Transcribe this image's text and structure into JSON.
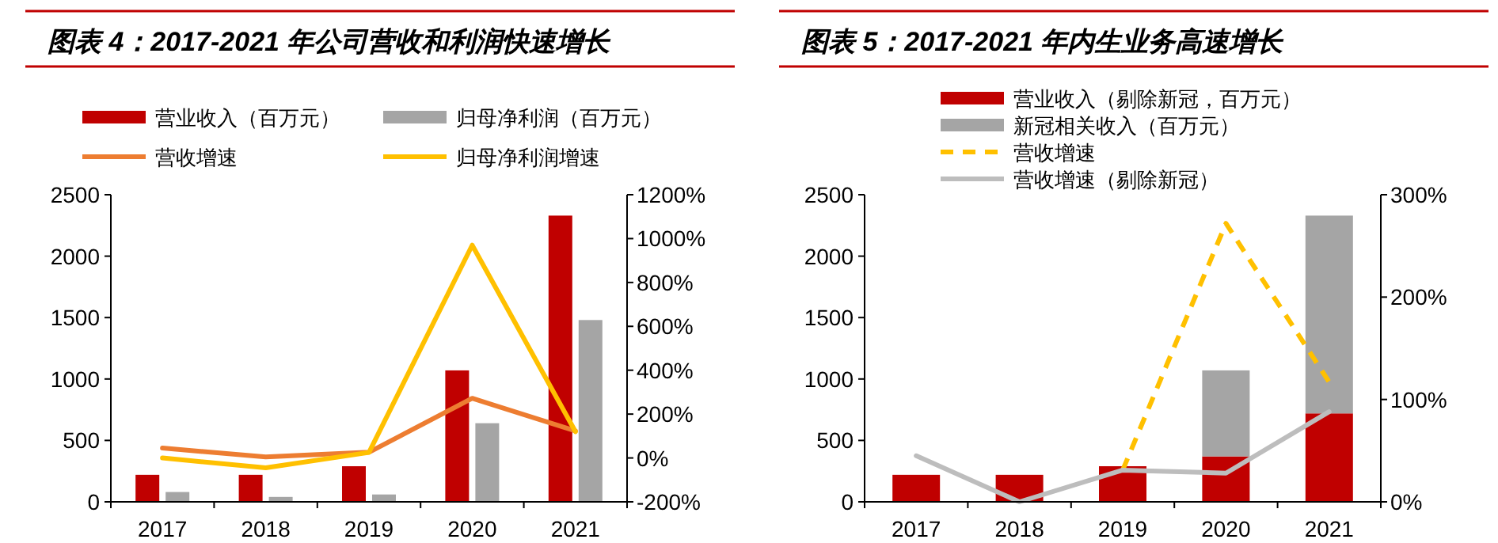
{
  "chart_data": [
    {
      "type": "bar",
      "title": "图表 4：2017-2021 年公司营收和利润快速增长",
      "categories": [
        "2017",
        "2018",
        "2019",
        "2020",
        "2021"
      ],
      "legend": "top",
      "series": [
        {
          "name": "营业收入（百万元）",
          "color": "#c00000",
          "values": [
            220,
            220,
            290,
            1070,
            2330
          ]
        },
        {
          "name": "归母净利润（百万元）",
          "color": "#a5a5a5",
          "values": [
            80,
            40,
            60,
            640,
            1480
          ]
        },
        {
          "name": "营收增速",
          "type": "line",
          "axis": "y2",
          "color": "#ed7d31",
          "values": [
            45,
            5,
            26,
            272,
            123
          ]
        },
        {
          "name": "归母净利润增速",
          "type": "line",
          "axis": "y2",
          "color": "#ffc000",
          "values": [
            0,
            -45,
            25,
            970,
            120
          ]
        }
      ],
      "ylim": [
        0,
        2500
      ],
      "yticks": [
        0,
        500,
        1000,
        1500,
        2000,
        2500
      ],
      "y2lim": [
        -200,
        1200
      ],
      "y2ticks": [
        {
          "value": -200,
          "label": "-200%"
        },
        {
          "value": 0,
          "label": "0%"
        },
        {
          "value": 200,
          "label": "200%"
        },
        {
          "value": 400,
          "label": "400%"
        },
        {
          "value": 600,
          "label": "600%"
        },
        {
          "value": 800,
          "label": "800%"
        },
        {
          "value": 1000,
          "label": "1000%"
        },
        {
          "value": 1200,
          "label": "1200%"
        }
      ]
    },
    {
      "type": "bar",
      "title": "图表 5：2017-2021 年内生业务高速增长",
      "categories": [
        "2017",
        "2018",
        "2019",
        "2020",
        "2021"
      ],
      "legend": "top",
      "stacked": true,
      "series": [
        {
          "name": "营业收入（剔除新冠，百万元）",
          "color": "#c00000",
          "values": [
            220,
            220,
            290,
            370,
            720
          ]
        },
        {
          "name": "新冠相关收入（百万元）",
          "color": "#a5a5a5",
          "values": [
            0,
            0,
            0,
            700,
            1610
          ]
        },
        {
          "name": "营收增速",
          "type": "line",
          "axis": "y2",
          "color": "#ffc000",
          "line_style": "dashed",
          "values": [
            null,
            null,
            31,
            272,
            117
          ]
        },
        {
          "name": "营收增速（剔除新冠）",
          "type": "line",
          "axis": "y2",
          "color": "#bdbdbd",
          "values": [
            45,
            0,
            31,
            28,
            88
          ]
        }
      ],
      "ylim": [
        0,
        2500
      ],
      "yticks": [
        0,
        500,
        1000,
        1500,
        2000,
        2500
      ],
      "y2lim": [
        0,
        300
      ],
      "y2ticks": [
        {
          "value": 0,
          "label": "0%"
        },
        {
          "value": 100,
          "label": "100%"
        },
        {
          "value": 200,
          "label": "200%"
        },
        {
          "value": 300,
          "label": "300%"
        }
      ]
    }
  ]
}
